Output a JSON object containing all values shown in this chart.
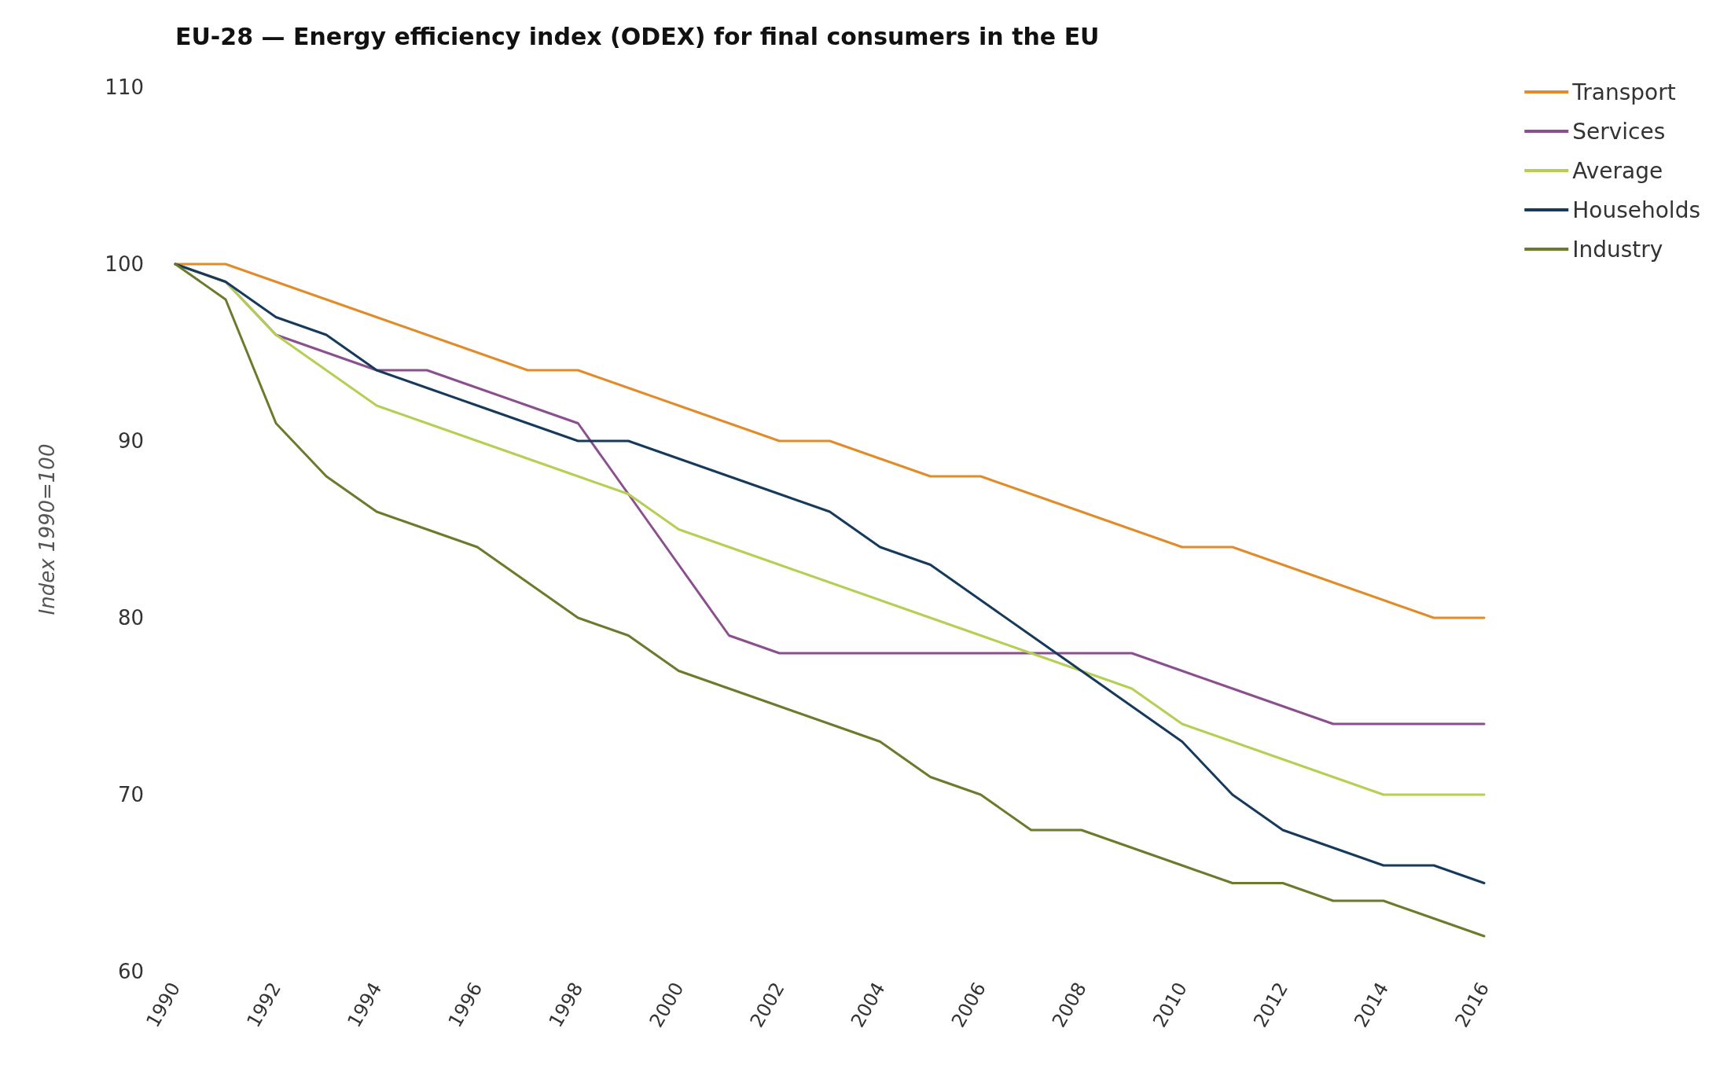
{
  "chart_data": {
    "type": "line",
    "title": "EU-28 — Energy efficiency index (ODEX) for final consumers in the EU",
    "ylabel": "Index 1990=100",
    "x": [
      1990,
      1991,
      1992,
      1993,
      1994,
      1995,
      1996,
      1997,
      1998,
      1999,
      2000,
      2001,
      2002,
      2003,
      2004,
      2005,
      2006,
      2007,
      2008,
      2009,
      2010,
      2011,
      2012,
      2013,
      2014,
      2015,
      2016
    ],
    "series": [
      {
        "name": "Transport",
        "color": "#e08c2a",
        "values": [
          100,
          100,
          99,
          98,
          97,
          96,
          95,
          94,
          94,
          93,
          92,
          91,
          90,
          90,
          89,
          88,
          88,
          87,
          86,
          85,
          84,
          84,
          83,
          82,
          81,
          80,
          80
        ]
      },
      {
        "name": "Services",
        "color": "#8b4f8f",
        "values": [
          100,
          99,
          96,
          95,
          94,
          94,
          93,
          92,
          91,
          87,
          83,
          79,
          78,
          78,
          78,
          78,
          78,
          78,
          78,
          78,
          77,
          76,
          75,
          74,
          74,
          74,
          74
        ]
      },
      {
        "name": "Average",
        "color": "#b5cf55",
        "values": [
          100,
          99,
          96,
          94,
          92,
          91,
          90,
          89,
          88,
          87,
          85,
          84,
          83,
          82,
          81,
          80,
          79,
          78,
          77,
          76,
          74,
          73,
          72,
          71,
          70,
          70,
          70
        ]
      },
      {
        "name": "Households",
        "color": "#163a5c",
        "values": [
          100,
          99,
          97,
          96,
          94,
          93,
          92,
          91,
          90,
          90,
          89,
          88,
          87,
          86,
          84,
          83,
          81,
          79,
          77,
          75,
          73,
          70,
          68,
          67,
          66,
          66,
          65
        ]
      },
      {
        "name": "Industry",
        "color": "#6b7a2c",
        "values": [
          100,
          98,
          91,
          88,
          86,
          85,
          84,
          82,
          80,
          79,
          77,
          76,
          75,
          74,
          73,
          71,
          70,
          68,
          68,
          67,
          66,
          65,
          65,
          64,
          64,
          63,
          62
        ]
      }
    ],
    "xlim": [
      1990,
      2016
    ],
    "xticks": [
      1990,
      1992,
      1994,
      1996,
      1998,
      2000,
      2002,
      2004,
      2006,
      2008,
      2010,
      2012,
      2014,
      2016
    ],
    "ylim": [
      60,
      110
    ],
    "yticks": [
      60,
      70,
      80,
      90,
      100,
      110
    ],
    "grid": false,
    "legend": "top right",
    "marker": "none",
    "line_style": "solid"
  }
}
